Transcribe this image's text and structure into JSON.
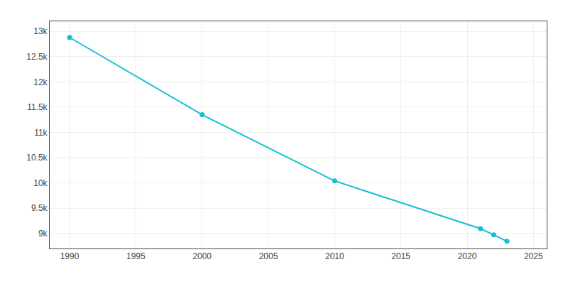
{
  "chart_data": {
    "type": "line",
    "x": [
      1990,
      2000,
      2010,
      2021,
      2022,
      2023
    ],
    "values": [
      12880,
      11350,
      10038,
      9094,
      8972,
      8843
    ],
    "color": "#17becf",
    "marker": "circle",
    "xlim": [
      1988.5,
      2026
    ],
    "ylim": [
      8700,
      13200
    ],
    "xticks": [
      1990,
      1995,
      2000,
      2005,
      2010,
      2015,
      2020,
      2025
    ],
    "yticks": [
      {
        "value": 9000,
        "label": "9k"
      },
      {
        "value": 9500,
        "label": "9.5k"
      },
      {
        "value": 10000,
        "label": "10k"
      },
      {
        "value": 10500,
        "label": "10.5k"
      },
      {
        "value": 11000,
        "label": "11k"
      },
      {
        "value": 11500,
        "label": "11.5k"
      },
      {
        "value": 12000,
        "label": "12k"
      },
      {
        "value": 12500,
        "label": "12.5k"
      },
      {
        "value": 13000,
        "label": "13k"
      }
    ],
    "grid": true
  }
}
